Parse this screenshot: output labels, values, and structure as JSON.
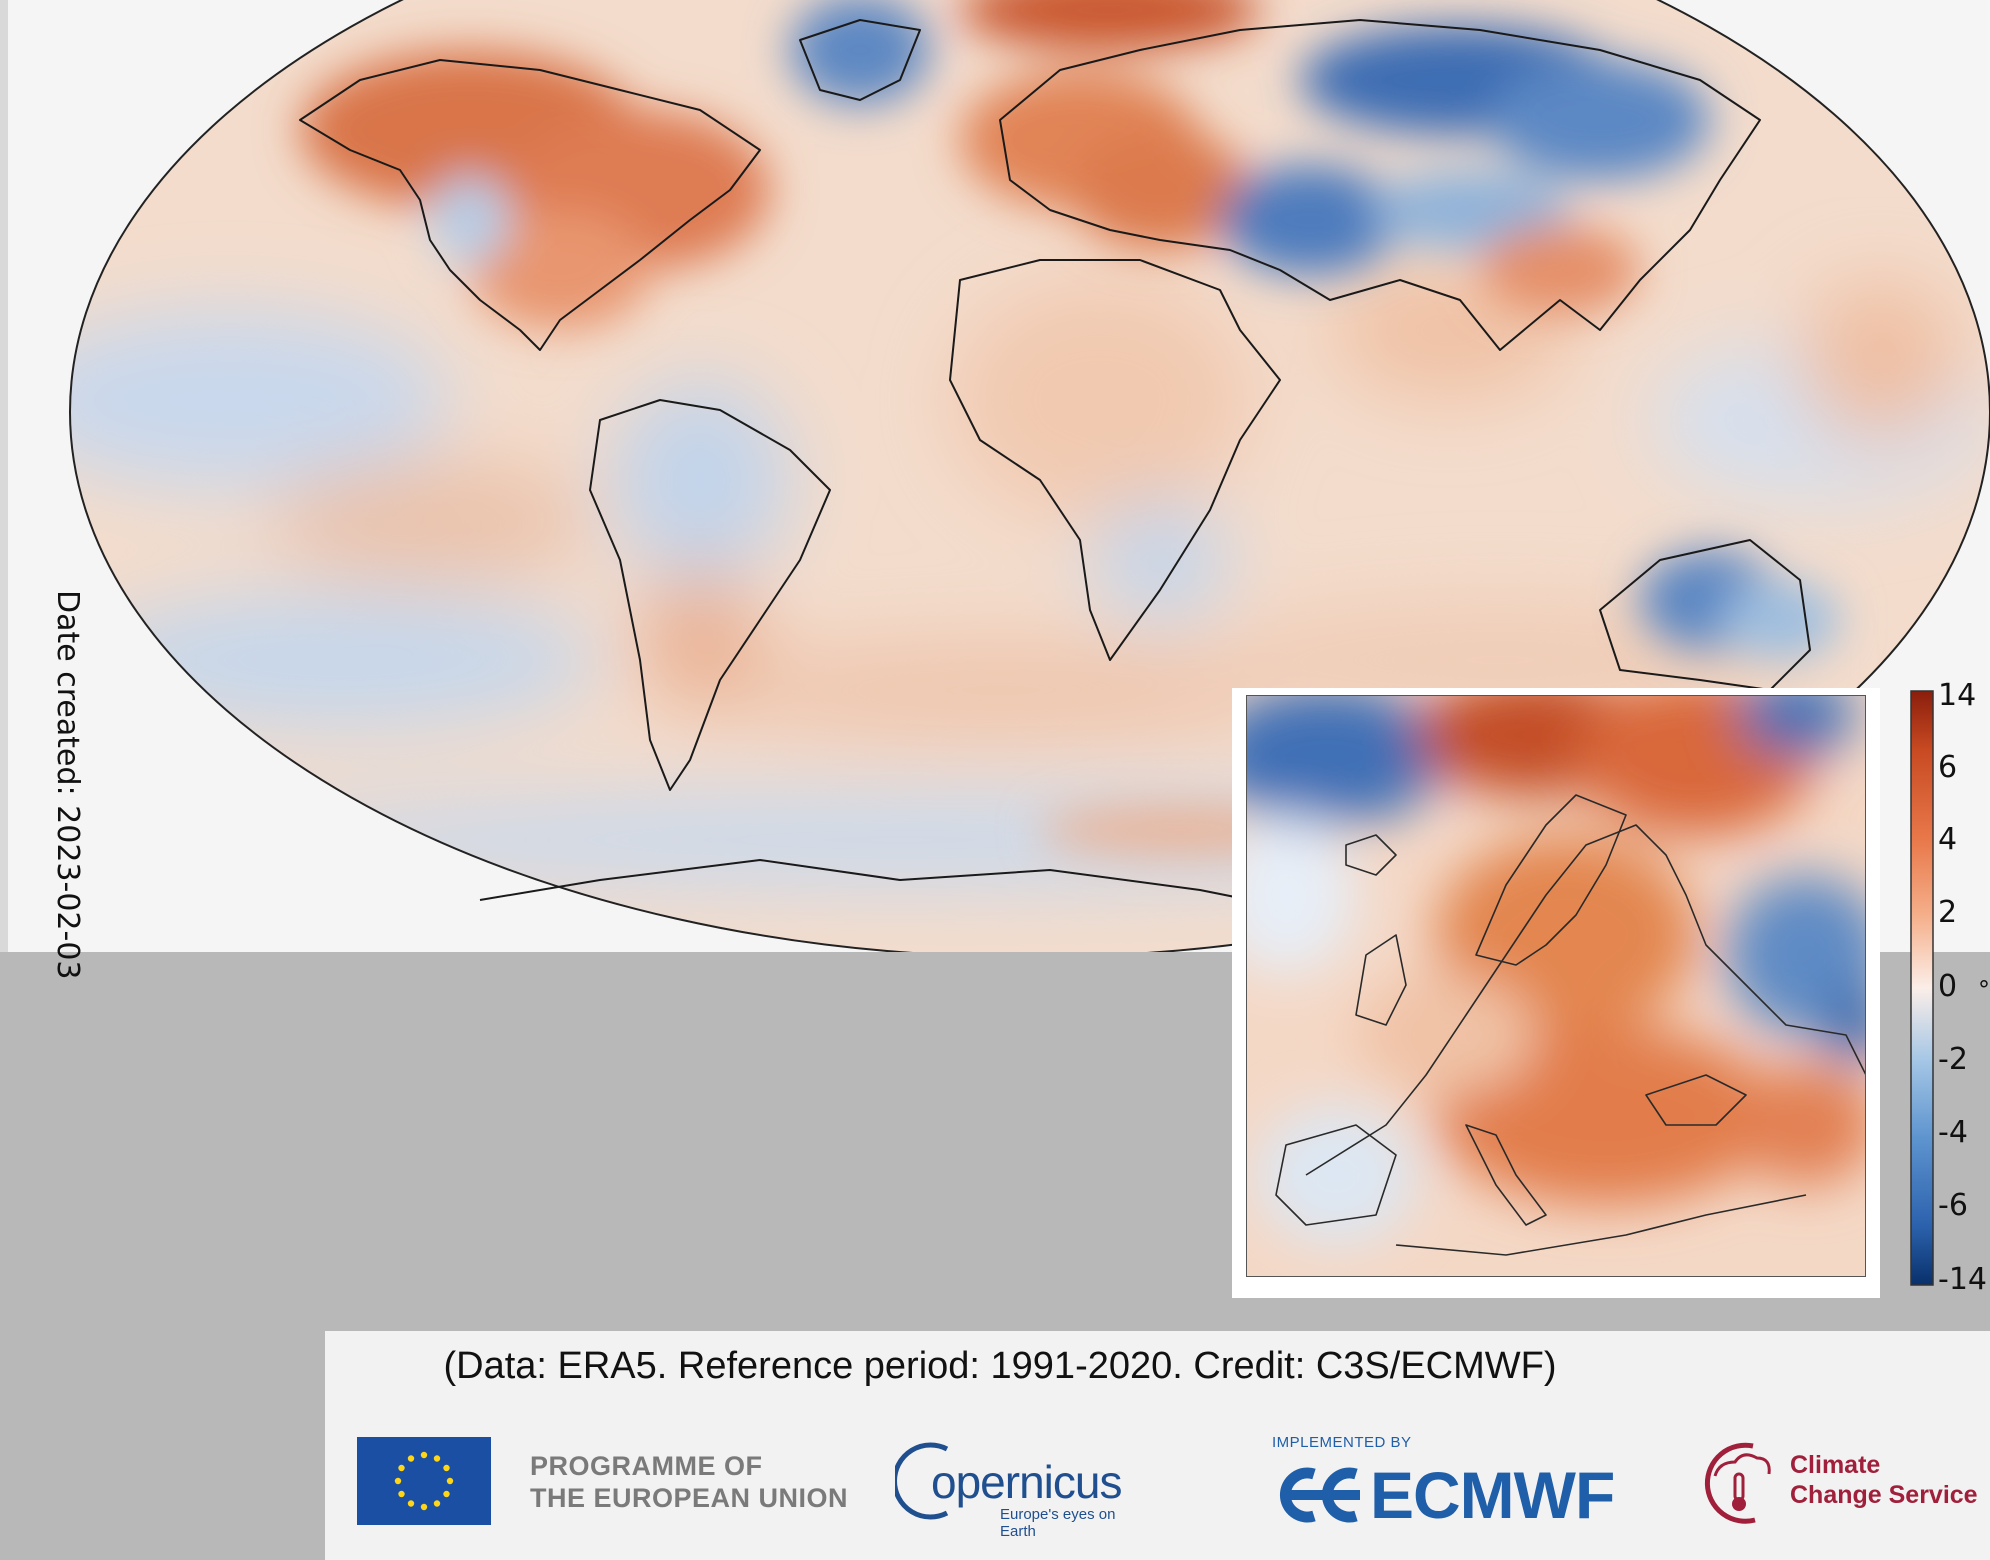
{
  "date_created": "Date created: 2023-02-03",
  "colorbar": {
    "ticks": [
      "14",
      "6",
      "4",
      "2",
      "0",
      "-2",
      "-4",
      "-6",
      "-14"
    ],
    "unit": "°",
    "colors": [
      "#08306b",
      "#2c62ad",
      "#5f95cf",
      "#a6c7e6",
      "#e6eef6",
      "#fbe3d4",
      "#f5b08c",
      "#e8784a",
      "#c84a22",
      "#8a1e0c"
    ]
  },
  "credit": "(Data: ERA5.  Reference period: 1991-2020.  Credit: C3S/ECMWF)",
  "logos": {
    "eu_line1": "PROGRAMME OF",
    "eu_line2": "THE EUROPEAN UNION",
    "copernicus": "opernicus",
    "copernicus_tagline": "Europe's eyes on Earth",
    "implemented_by": "IMPLEMENTED BY",
    "ecmwf": "ECMWF",
    "c3s_line1": "Climate",
    "c3s_line2": "Change Service"
  },
  "palette": {
    "warm": "#e8926a",
    "warm_strong": "#c9532a",
    "cool": "#a9c6e4",
    "cool_strong": "#2f63ad",
    "neutral": "#f6ece4"
  }
}
